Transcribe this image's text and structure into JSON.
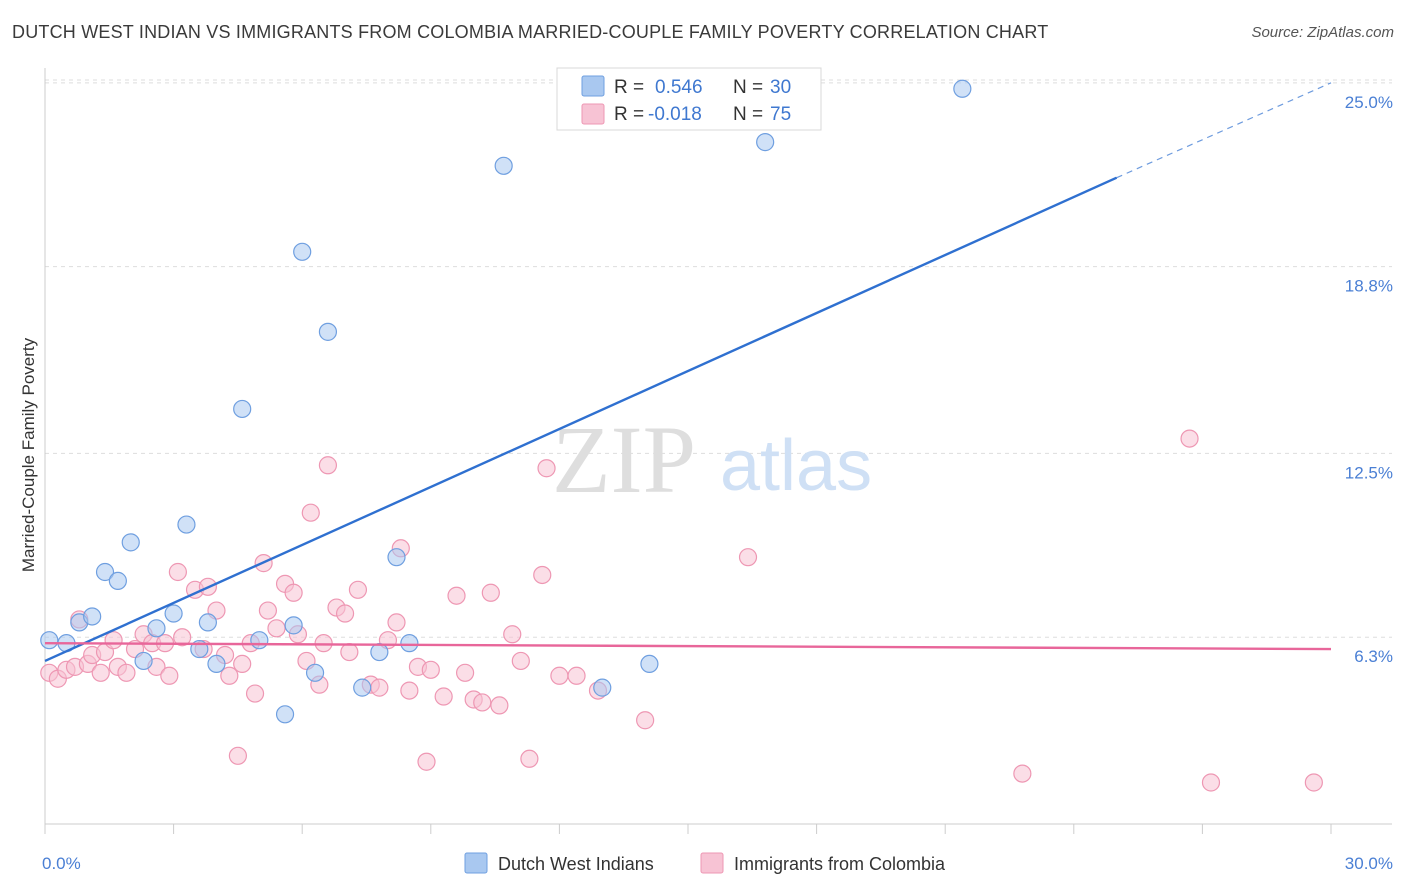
{
  "chart_data": {
    "type": "scatter",
    "title": "DUTCH WEST INDIAN VS IMMIGRANTS FROM COLOMBIA MARRIED-COUPLE FAMILY POVERTY CORRELATION CHART",
    "source": "Source: ZipAtlas.com",
    "ylabel": "Married-Couple Family Poverty",
    "xlim": [
      0,
      30
    ],
    "ylim": [
      0,
      25.5
    ],
    "x_tick_labels": [
      "0.0%",
      "30.0%"
    ],
    "y_ticks": [
      {
        "value": 6.3,
        "label": "6.3%"
      },
      {
        "value": 12.5,
        "label": "12.5%"
      },
      {
        "value": 18.8,
        "label": "18.8%"
      },
      {
        "value": 25.0,
        "label": "25.0%"
      }
    ],
    "watermark": {
      "zip": "ZIP",
      "atlas": "atlas"
    },
    "legend": {
      "r_label": "R =",
      "n_label": "N =",
      "entries": [
        {
          "r": "0.546",
          "n": "30"
        },
        {
          "r": "-0.018",
          "n": "75"
        }
      ]
    },
    "series": [
      {
        "name": "Dutch West Indians",
        "color": "#a9c8f0",
        "stroke": "#6f9fe0",
        "line_color": "#2f70d0",
        "trend": {
          "x0": 0,
          "y0": 5.5,
          "x1": 25,
          "y1": 21.8,
          "dash_to_x": 30,
          "dash_to_y": 25.0
        },
        "points": [
          [
            0.1,
            6.2
          ],
          [
            0.5,
            6.1
          ],
          [
            0.8,
            6.8
          ],
          [
            1.1,
            7.0
          ],
          [
            1.4,
            8.5
          ],
          [
            1.7,
            8.2
          ],
          [
            2.0,
            9.5
          ],
          [
            2.3,
            5.5
          ],
          [
            2.6,
            6.6
          ],
          [
            3.0,
            7.1
          ],
          [
            3.3,
            10.1
          ],
          [
            3.6,
            5.9
          ],
          [
            3.8,
            6.8
          ],
          [
            4.0,
            5.4
          ],
          [
            4.6,
            14.0
          ],
          [
            5.0,
            6.2
          ],
          [
            5.6,
            3.7
          ],
          [
            5.8,
            6.7
          ],
          [
            6.0,
            19.3
          ],
          [
            6.3,
            5.1
          ],
          [
            6.6,
            16.6
          ],
          [
            7.4,
            4.6
          ],
          [
            7.8,
            5.8
          ],
          [
            8.2,
            9.0
          ],
          [
            8.5,
            6.1
          ],
          [
            10.7,
            22.2
          ],
          [
            13.0,
            4.6
          ],
          [
            14.1,
            5.4
          ],
          [
            16.8,
            23.0
          ],
          [
            21.4,
            24.8
          ]
        ]
      },
      {
        "name": "Immigrants from Colombia",
        "color": "#f7c3d4",
        "stroke": "#ee97b3",
        "line_color": "#e8669a",
        "trend": {
          "x0": 0,
          "y0": 6.1,
          "x1": 30,
          "y1": 5.9
        },
        "points": [
          [
            0.1,
            5.1
          ],
          [
            0.3,
            4.9
          ],
          [
            0.5,
            5.2
          ],
          [
            0.7,
            5.3
          ],
          [
            0.8,
            6.9
          ],
          [
            1.0,
            5.4
          ],
          [
            1.1,
            5.7
          ],
          [
            1.3,
            5.1
          ],
          [
            1.4,
            5.8
          ],
          [
            1.6,
            6.2
          ],
          [
            1.7,
            5.3
          ],
          [
            1.9,
            5.1
          ],
          [
            2.1,
            5.9
          ],
          [
            2.3,
            6.4
          ],
          [
            2.5,
            6.1
          ],
          [
            2.6,
            5.3
          ],
          [
            2.8,
            6.1
          ],
          [
            2.9,
            5.0
          ],
          [
            3.1,
            8.5
          ],
          [
            3.2,
            6.3
          ],
          [
            3.5,
            7.9
          ],
          [
            3.7,
            5.9
          ],
          [
            3.8,
            8.0
          ],
          [
            4.0,
            7.2
          ],
          [
            4.2,
            5.7
          ],
          [
            4.3,
            5.0
          ],
          [
            4.5,
            2.3
          ],
          [
            4.6,
            5.4
          ],
          [
            4.8,
            6.1
          ],
          [
            4.9,
            4.4
          ],
          [
            5.1,
            8.8
          ],
          [
            5.2,
            7.2
          ],
          [
            5.4,
            6.6
          ],
          [
            5.6,
            8.1
          ],
          [
            5.8,
            7.8
          ],
          [
            5.9,
            6.4
          ],
          [
            6.1,
            5.5
          ],
          [
            6.2,
            10.5
          ],
          [
            6.4,
            4.7
          ],
          [
            6.5,
            6.1
          ],
          [
            6.6,
            12.1
          ],
          [
            6.8,
            7.3
          ],
          [
            7.0,
            7.1
          ],
          [
            7.1,
            5.8
          ],
          [
            7.3,
            7.9
          ],
          [
            7.6,
            4.7
          ],
          [
            7.8,
            4.6
          ],
          [
            8.0,
            6.2
          ],
          [
            8.2,
            6.8
          ],
          [
            8.3,
            9.3
          ],
          [
            8.5,
            4.5
          ],
          [
            8.7,
            5.3
          ],
          [
            8.9,
            2.1
          ],
          [
            9.0,
            5.2
          ],
          [
            9.3,
            4.3
          ],
          [
            9.6,
            7.7
          ],
          [
            9.8,
            5.1
          ],
          [
            10.0,
            4.2
          ],
          [
            10.2,
            4.1
          ],
          [
            10.4,
            7.8
          ],
          [
            10.6,
            4.0
          ],
          [
            10.9,
            6.4
          ],
          [
            11.1,
            5.5
          ],
          [
            11.3,
            2.2
          ],
          [
            11.6,
            8.4
          ],
          [
            11.7,
            12.0
          ],
          [
            12.0,
            5.0
          ],
          [
            12.4,
            5.0
          ],
          [
            12.9,
            4.5
          ],
          [
            14.0,
            3.5
          ],
          [
            16.4,
            9.0
          ],
          [
            22.8,
            1.7
          ],
          [
            26.7,
            13.0
          ],
          [
            27.2,
            1.4
          ],
          [
            29.6,
            1.4
          ]
        ]
      }
    ]
  }
}
